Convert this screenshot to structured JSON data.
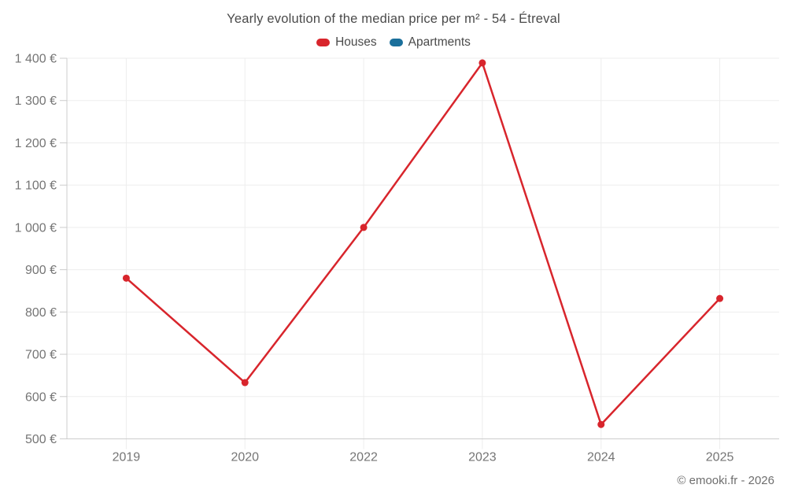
{
  "title": "Yearly evolution of the median price per m² - 54 - Étreval",
  "legend": [
    {
      "label": "Houses",
      "color": "#d8252c"
    },
    {
      "label": "Apartments",
      "color": "#1a6f9b"
    }
  ],
  "footer": "© emooki.fr - 2026",
  "colors": {
    "grid": "#ededed",
    "axis": "#cccccc",
    "tick_label": "#757575",
    "title_text": "#4a4a4a"
  },
  "chart_data": {
    "type": "line",
    "title": "Yearly evolution of the median price per m² - 54 - Étreval",
    "categories": [
      "2019",
      "2020",
      "2022",
      "2023",
      "2024",
      "2025"
    ],
    "series": [
      {
        "name": "Houses",
        "color": "#d8252c",
        "values": [
          880,
          633,
          1000,
          1389,
          534,
          832
        ]
      },
      {
        "name": "Apartments",
        "color": "#1a6f9b",
        "values": []
      }
    ],
    "xlabel": "",
    "ylabel": "",
    "ylim": [
      500,
      1400
    ],
    "y_tick_step": 100,
    "y_tick_labels": [
      "500 €",
      "600 €",
      "700 €",
      "800 €",
      "900 €",
      "1 000 €",
      "1 100 €",
      "1 200 €",
      "1 300 €",
      "1 400 €"
    ],
    "grid": true,
    "legend_position": "top",
    "currency": "€"
  }
}
